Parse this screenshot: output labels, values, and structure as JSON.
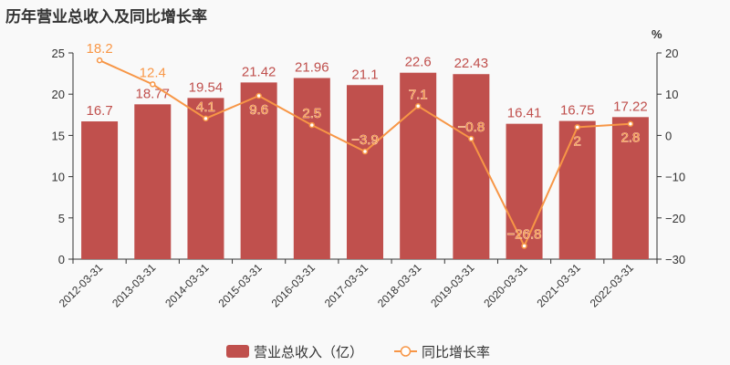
{
  "chart_data": {
    "type": "bar",
    "title": "历年营业总收入及同比增长率",
    "categories": [
      "2012-03-31",
      "2013-03-31",
      "2014-03-31",
      "2015-03-31",
      "2016-03-31",
      "2017-03-31",
      "2018-03-31",
      "2019-03-31",
      "2020-03-31",
      "2021-03-31",
      "2022-03-31"
    ],
    "series": [
      {
        "name": "营业总收入（亿）",
        "type": "bar",
        "axis": "left",
        "color": "#c0504d",
        "values": [
          16.7,
          18.77,
          19.54,
          21.42,
          21.96,
          21.1,
          22.6,
          22.43,
          16.41,
          16.75,
          17.22
        ]
      },
      {
        "name": "同比增长率",
        "type": "line",
        "axis": "right",
        "color": "#f79646",
        "values": [
          18.2,
          12.4,
          4.1,
          9.6,
          2.5,
          -3.9,
          7.1,
          -0.8,
          -26.8,
          2,
          2.8
        ]
      }
    ],
    "y_left": {
      "range": [
        0,
        25
      ],
      "ticks": [
        0,
        5,
        10,
        15,
        20,
        25
      ]
    },
    "y_right": {
      "label": "%",
      "range": [
        -30,
        20
      ],
      "ticks": [
        -30,
        -20,
        -10,
        0,
        10,
        20
      ]
    },
    "grid": false,
    "legend": "bottom"
  }
}
